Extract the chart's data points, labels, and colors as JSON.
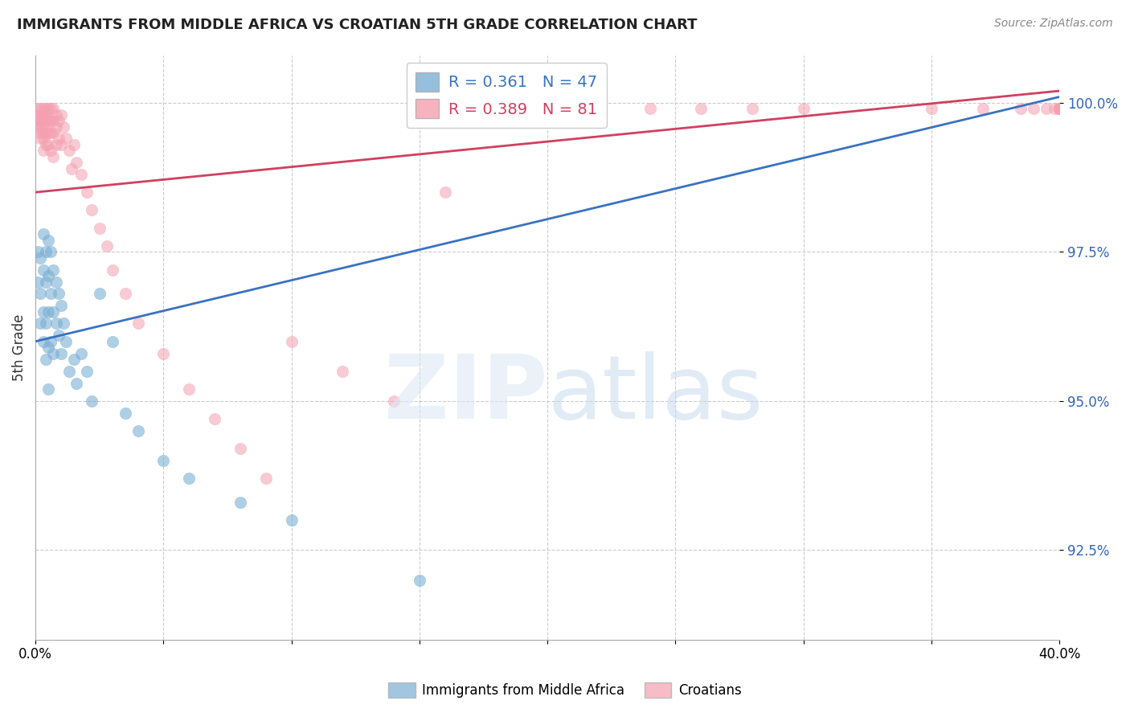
{
  "title": "IMMIGRANTS FROM MIDDLE AFRICA VS CROATIAN 5TH GRADE CORRELATION CHART",
  "source": "Source: ZipAtlas.com",
  "ylabel": "5th Grade",
  "ytick_labels": [
    "92.5%",
    "95.0%",
    "97.5%",
    "100.0%"
  ],
  "ytick_values": [
    0.925,
    0.95,
    0.975,
    1.0
  ],
  "xmin": 0.0,
  "xmax": 0.4,
  "ymin": 0.91,
  "ymax": 1.008,
  "blue_R": 0.361,
  "blue_N": 47,
  "pink_R": 0.389,
  "pink_N": 81,
  "blue_color": "#7BAFD4",
  "pink_color": "#F4A0B0",
  "blue_line_color": "#3A72C0",
  "pink_line_color": "#D04060",
  "legend_label_blue": "Immigrants from Middle Africa",
  "legend_label_pink": "Croatians",
  "blue_line_x0": 0.0,
  "blue_line_y0": 0.96,
  "blue_line_x1": 0.4,
  "blue_line_y1": 1.001,
  "pink_line_x0": 0.0,
  "pink_line_y0": 0.985,
  "pink_line_x1": 0.4,
  "pink_line_y1": 1.002,
  "blue_x": [
    0.001,
    0.001,
    0.002,
    0.002,
    0.002,
    0.003,
    0.003,
    0.003,
    0.003,
    0.004,
    0.004,
    0.004,
    0.004,
    0.005,
    0.005,
    0.005,
    0.005,
    0.005,
    0.006,
    0.006,
    0.006,
    0.007,
    0.007,
    0.007,
    0.008,
    0.008,
    0.009,
    0.009,
    0.01,
    0.01,
    0.011,
    0.012,
    0.013,
    0.015,
    0.016,
    0.018,
    0.02,
    0.022,
    0.025,
    0.03,
    0.035,
    0.04,
    0.05,
    0.06,
    0.08,
    0.1,
    0.15
  ],
  "blue_y": [
    0.975,
    0.97,
    0.974,
    0.968,
    0.963,
    0.978,
    0.972,
    0.965,
    0.96,
    0.975,
    0.97,
    0.963,
    0.957,
    0.977,
    0.971,
    0.965,
    0.959,
    0.952,
    0.975,
    0.968,
    0.96,
    0.972,
    0.965,
    0.958,
    0.97,
    0.963,
    0.968,
    0.961,
    0.966,
    0.958,
    0.963,
    0.96,
    0.955,
    0.957,
    0.953,
    0.958,
    0.955,
    0.95,
    0.968,
    0.96,
    0.948,
    0.945,
    0.94,
    0.937,
    0.933,
    0.93,
    0.92
  ],
  "pink_x": [
    0.001,
    0.001,
    0.001,
    0.001,
    0.002,
    0.002,
    0.002,
    0.002,
    0.002,
    0.002,
    0.003,
    0.003,
    0.003,
    0.003,
    0.003,
    0.003,
    0.003,
    0.004,
    0.004,
    0.004,
    0.004,
    0.004,
    0.005,
    0.005,
    0.005,
    0.005,
    0.006,
    0.006,
    0.006,
    0.006,
    0.007,
    0.007,
    0.007,
    0.007,
    0.008,
    0.008,
    0.008,
    0.009,
    0.009,
    0.01,
    0.01,
    0.011,
    0.012,
    0.013,
    0.014,
    0.015,
    0.016,
    0.018,
    0.02,
    0.022,
    0.025,
    0.028,
    0.03,
    0.035,
    0.04,
    0.05,
    0.06,
    0.07,
    0.08,
    0.09,
    0.1,
    0.12,
    0.14,
    0.16,
    0.18,
    0.2,
    0.22,
    0.24,
    0.26,
    0.28,
    0.3,
    0.35,
    0.37,
    0.385,
    0.39,
    0.395,
    0.398,
    0.4,
    0.4,
    0.4,
    0.4
  ],
  "pink_y": [
    0.999,
    0.998,
    0.997,
    0.996,
    0.999,
    0.998,
    0.997,
    0.996,
    0.995,
    0.994,
    0.999,
    0.998,
    0.997,
    0.996,
    0.995,
    0.994,
    0.992,
    0.999,
    0.998,
    0.997,
    0.995,
    0.993,
    0.999,
    0.997,
    0.995,
    0.993,
    0.999,
    0.997,
    0.995,
    0.992,
    0.999,
    0.997,
    0.995,
    0.991,
    0.998,
    0.996,
    0.993,
    0.997,
    0.994,
    0.998,
    0.993,
    0.996,
    0.994,
    0.992,
    0.989,
    0.993,
    0.99,
    0.988,
    0.985,
    0.982,
    0.979,
    0.976,
    0.972,
    0.968,
    0.963,
    0.958,
    0.952,
    0.947,
    0.942,
    0.937,
    0.96,
    0.955,
    0.95,
    0.985,
    0.998,
    0.999,
    0.999,
    0.999,
    0.999,
    0.999,
    0.999,
    0.999,
    0.999,
    0.999,
    0.999,
    0.999,
    0.999,
    0.999,
    0.999,
    0.999,
    0.999
  ]
}
